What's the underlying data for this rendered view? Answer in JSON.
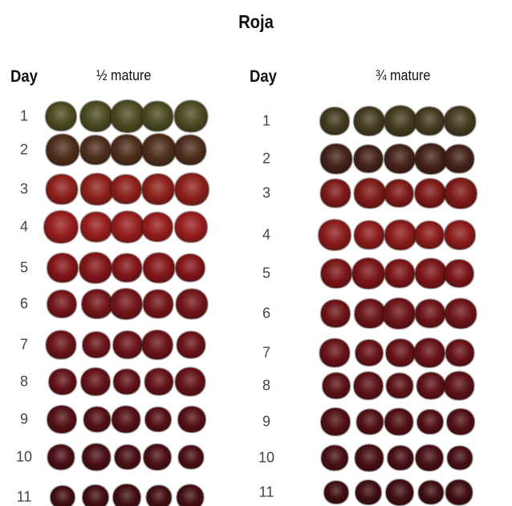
{
  "title": "Roja",
  "panels": [
    {
      "day_header": "Day",
      "label": "½ mature",
      "days": [
        "1",
        "2",
        "3",
        "4",
        "5",
        "6",
        "7",
        "8",
        "9",
        "10",
        "11"
      ],
      "row_colors": [
        "#4b4a22",
        "#4e2e1c",
        "#8c201b",
        "#961d1d",
        "#821619",
        "#731519",
        "#6a1419",
        "#621318",
        "#531116",
        "#4a1015",
        "#420f13"
      ]
    },
    {
      "day_header": "Day",
      "label": "¾ mature",
      "days": [
        "1",
        "2",
        "3",
        "4",
        "5",
        "6",
        "7",
        "8",
        "9",
        "10",
        "11"
      ],
      "row_colors": [
        "#433b20",
        "#44221a",
        "#7c1a18",
        "#8a1c1b",
        "#7a1518",
        "#6c1418",
        "#661318",
        "#5c1217",
        "#501015",
        "#471014",
        "#3f0e12"
      ]
    }
  ]
}
